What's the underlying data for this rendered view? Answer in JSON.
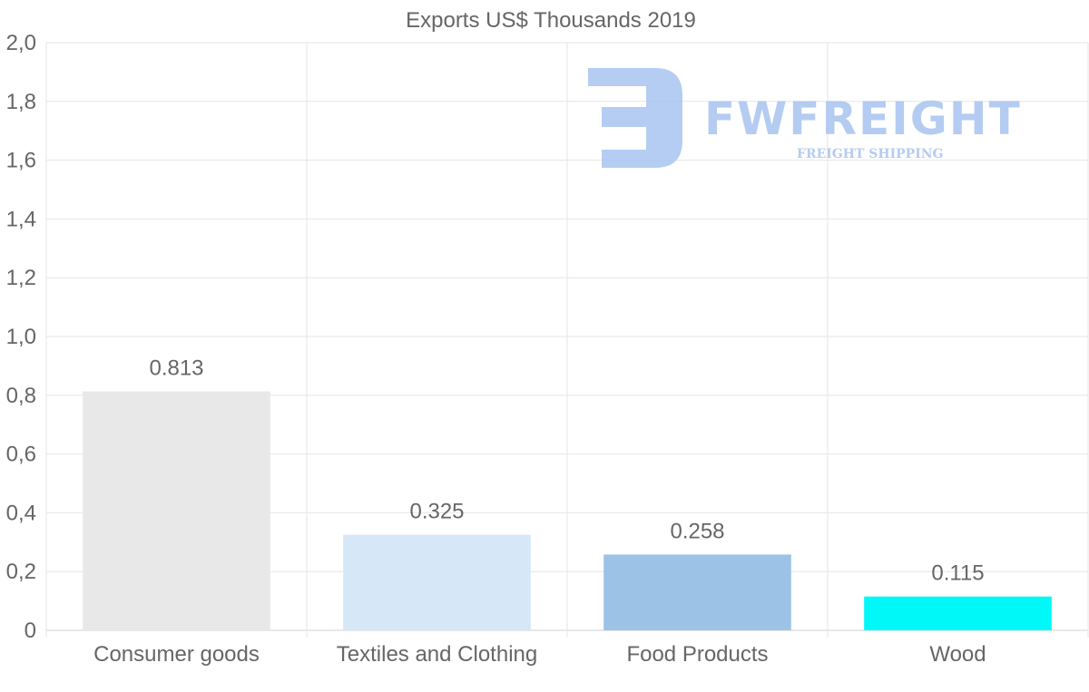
{
  "chart_data": {
    "type": "bar",
    "title": "Exports US$ Thousands 2019",
    "categories": [
      "Consumer goods",
      "Textiles and Clothing",
      "Food Products",
      "Wood"
    ],
    "values": [
      0.813,
      0.325,
      0.258,
      0.115
    ],
    "data_labels": [
      "0.813",
      "0.325",
      "0.258",
      "0.115"
    ],
    "bar_colors": [
      "#e8e8e8",
      "#d6e7f8",
      "#9cc3e6",
      "#00f8f8"
    ],
    "ylim": [
      0,
      2.0
    ],
    "y_ticks": [
      0,
      0.2,
      0.4,
      0.6,
      0.8,
      1.0,
      1.2,
      1.4,
      1.6,
      1.8,
      2.0
    ],
    "y_tick_labels": [
      "0",
      "0,2",
      "0,4",
      "0,6",
      "0,8",
      "1,0",
      "1,2",
      "1,4",
      "1,6",
      "1,8",
      "2,0"
    ],
    "xlabel": "",
    "ylabel": "",
    "grid": true,
    "legend": "none"
  },
  "watermark": {
    "brand": "FWFREIGHT",
    "tagline": "FREIGHT SHIPPING",
    "color": "#a8c4f0"
  }
}
